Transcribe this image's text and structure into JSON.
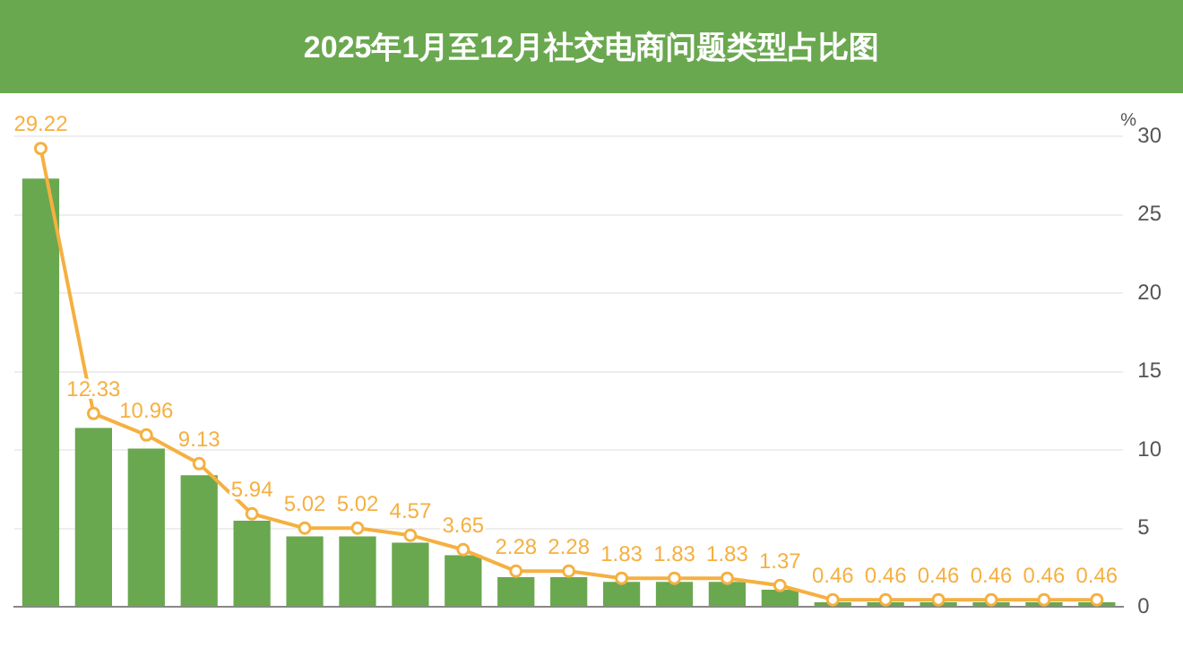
{
  "chart_data": {
    "type": "bar",
    "title": "2025年1月至12月社交电商问题类型占比图",
    "ylabel": "%",
    "categories": [
      null,
      null,
      null,
      null,
      null,
      null,
      null,
      null,
      null,
      null,
      null,
      null,
      null,
      null,
      null,
      null,
      null,
      null,
      null,
      null,
      null
    ],
    "series": [
      {
        "color": "#6aa84f",
        "values": [
          27.3,
          11.4,
          10.1,
          8.4,
          5.5,
          4.5,
          4.5,
          4.1,
          3.3,
          1.9,
          1.9,
          1.6,
          1.6,
          1.6,
          1.1,
          0.3,
          0.3,
          0.3,
          0.3,
          0.3,
          0.3
        ]
      },
      {
        "type": "line",
        "color": "#f5b041",
        "marker": "circle",
        "values": [
          29.22,
          12.33,
          10.96,
          9.13,
          5.94,
          5.02,
          5.02,
          4.57,
          3.65,
          2.28,
          2.28,
          1.83,
          1.83,
          1.83,
          1.37,
          0.46,
          0.46,
          0.46,
          0.46,
          0.46,
          0.46
        ],
        "value_labels": [
          "29.22",
          "12.33",
          "10.96",
          "9.13",
          "5.94",
          "5.02",
          "5.02",
          "4.57",
          "3.65",
          "2.28",
          "2.28",
          "1.83",
          "1.83",
          "1.83",
          "1.37",
          "0.46",
          "0.46",
          "0.46",
          "0.46",
          "0.46",
          "0.46"
        ]
      }
    ],
    "ylim": [
      0,
      30
    ],
    "yticks": [
      0,
      5,
      10,
      15,
      20,
      25,
      30
    ],
    "grid": "y",
    "legend": false
  }
}
